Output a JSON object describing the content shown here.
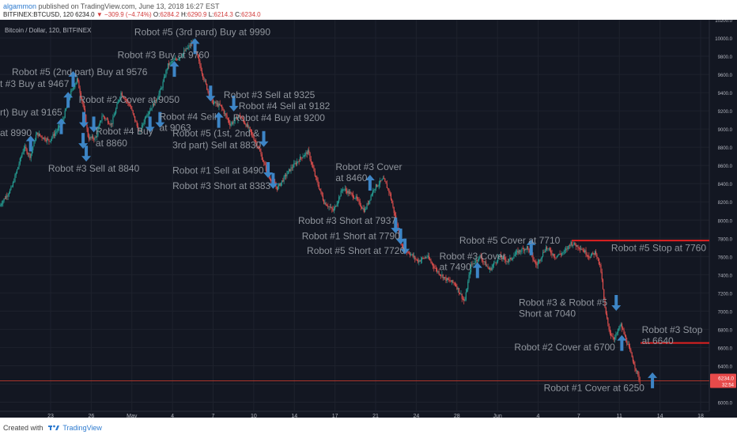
{
  "header": {
    "user": "algammon",
    "published": "published on TradingView.com, June 13, 2018 16:27 EST",
    "symbol": "BITFINEX:BTCUSD, 120",
    "last": "6234.0",
    "change": "−309.9 (−4.74%)",
    "o_label": "O:",
    "o": "6284.2",
    "h_label": "H:",
    "h": "6290.9",
    "l_label": "L:",
    "l": "6214.3",
    "c_label": "C:",
    "c": "6234.0"
  },
  "footer": {
    "created_with": "Created with",
    "brand": "TradingView"
  },
  "colors": {
    "background": "#131722",
    "grid": "#1e222d",
    "up": "#26a69a",
    "down": "#ef5350",
    "arrow": "#3d85c6",
    "label": "#8f949c",
    "stop_line": "#e02020",
    "last_price_line": "#c0392b",
    "price_badge": "#e84a4a"
  },
  "chart_data": {
    "type": "candlestick",
    "title": "Bitcoin / Dollar, 120, BITFINEX",
    "ylim": [
      5900,
      10200
    ],
    "y_ticks": [
      "10200.0",
      "10000.0",
      "9800.0",
      "9600.0",
      "9400.0",
      "9200.0",
      "9000.0",
      "8800.0",
      "8600.0",
      "8400.0",
      "8200.0",
      "8000.0",
      "7800.0",
      "7600.0",
      "7400.0",
      "7200.0",
      "7000.0",
      "6800.0",
      "6600.0",
      "6400.0",
      "6200.0",
      "6000.0"
    ],
    "x_ticks": [
      "23",
      "26",
      "May",
      "4",
      "7",
      "10",
      "14",
      "17",
      "21",
      "24",
      "28",
      "Jun",
      "4",
      "7",
      "11",
      "14",
      "18"
    ],
    "last_price": 6234.0,
    "price_badge_sub": "32:54",
    "price_path": [
      {
        "t": 0,
        "p": 8150
      },
      {
        "t": 2,
        "p": 8350
      },
      {
        "t": 4,
        "p": 8800
      },
      {
        "t": 5,
        "p": 8700
      },
      {
        "t": 6,
        "p": 8950
      },
      {
        "t": 8,
        "p": 8870
      },
      {
        "t": 10,
        "p": 9050
      },
      {
        "t": 11.5,
        "p": 9400
      },
      {
        "t": 12.5,
        "p": 9550
      },
      {
        "t": 13.5,
        "p": 9250
      },
      {
        "t": 14.3,
        "p": 8900
      },
      {
        "t": 15.5,
        "p": 8900
      },
      {
        "t": 16.5,
        "p": 9150
      },
      {
        "t": 18,
        "p": 9050
      },
      {
        "t": 19.5,
        "p": 9400
      },
      {
        "t": 21,
        "p": 9250
      },
      {
        "t": 22.5,
        "p": 8950
      },
      {
        "t": 23.5,
        "p": 9150
      },
      {
        "t": 25,
        "p": 9300
      },
      {
        "t": 26,
        "p": 9450
      },
      {
        "t": 27,
        "p": 9700
      },
      {
        "t": 29,
        "p": 9800
      },
      {
        "t": 31,
        "p": 9950
      },
      {
        "t": 31.7,
        "p": 9800
      },
      {
        "t": 32.8,
        "p": 9550
      },
      {
        "t": 34,
        "p": 9300
      },
      {
        "t": 35.5,
        "p": 9250
      },
      {
        "t": 37,
        "p": 9050
      },
      {
        "t": 38.5,
        "p": 9150
      },
      {
        "t": 40,
        "p": 9000
      },
      {
        "t": 41.5,
        "p": 8800
      },
      {
        "t": 43,
        "p": 8500
      },
      {
        "t": 44.5,
        "p": 8350
      },
      {
        "t": 46.5,
        "p": 8550
      },
      {
        "t": 48.5,
        "p": 8700
      },
      {
        "t": 49.5,
        "p": 8750
      },
      {
        "t": 50.5,
        "p": 8500
      },
      {
        "t": 52,
        "p": 8200
      },
      {
        "t": 53.5,
        "p": 8100
      },
      {
        "t": 55,
        "p": 8350
      },
      {
        "t": 57,
        "p": 8250
      },
      {
        "t": 58.5,
        "p": 8100
      },
      {
        "t": 60,
        "p": 8350
      },
      {
        "t": 61.5,
        "p": 8450
      },
      {
        "t": 62.5,
        "p": 8300
      },
      {
        "t": 63.5,
        "p": 8000
      },
      {
        "t": 64.5,
        "p": 7700
      },
      {
        "t": 65.5,
        "p": 7650
      },
      {
        "t": 67,
        "p": 7550
      },
      {
        "t": 68.5,
        "p": 7600
      },
      {
        "t": 70,
        "p": 7450
      },
      {
        "t": 71.5,
        "p": 7350
      },
      {
        "t": 73,
        "p": 7300
      },
      {
        "t": 74.5,
        "p": 7100
      },
      {
        "t": 75.5,
        "p": 7500
      },
      {
        "t": 77,
        "p": 7600
      },
      {
        "t": 78.5,
        "p": 7450
      },
      {
        "t": 80,
        "p": 7600
      },
      {
        "t": 81.5,
        "p": 7550
      },
      {
        "t": 83,
        "p": 7650
      },
      {
        "t": 84.5,
        "p": 7700
      },
      {
        "t": 86,
        "p": 7500
      },
      {
        "t": 87.5,
        "p": 7700
      },
      {
        "t": 89,
        "p": 7600
      },
      {
        "t": 90.5,
        "p": 7650
      },
      {
        "t": 91.5,
        "p": 7750
      },
      {
        "t": 93,
        "p": 7700
      },
      {
        "t": 94.5,
        "p": 7600
      },
      {
        "t": 95.5,
        "p": 7650
      },
      {
        "t": 96.3,
        "p": 7450
      },
      {
        "t": 97,
        "p": 7000
      },
      {
        "t": 97.8,
        "p": 6750
      },
      {
        "t": 98.5,
        "p": 6700
      },
      {
        "t": 99.5,
        "p": 6850
      },
      {
        "t": 100.5,
        "p": 6650
      },
      {
        "t": 101.5,
        "p": 6450
      },
      {
        "t": 102.5,
        "p": 6234
      }
    ],
    "annotations": [
      {
        "id": "ann-1",
        "text": "Robot #5 (3rd pard) Buy at 9990",
        "t": 21.5,
        "p": 10030
      },
      {
        "id": "ann-2",
        "text": "Robot #3 Buy at 9760",
        "t": 18.8,
        "p": 9780
      },
      {
        "id": "ann-3",
        "text": "Robot #5 (2nd part) Buy at 9576",
        "t": 1.9,
        "p": 9590
      },
      {
        "id": "ann-4",
        "text": "t #3 Buy at 9467",
        "t": 0,
        "p": 9460
      },
      {
        "id": "ann-5",
        "text": "Robot #2 Cover at 9050",
        "t": 12.6,
        "p": 9290
      },
      {
        "id": "ann-6",
        "text": "rt) Buy at 9165",
        "t": 0,
        "p": 9150
      },
      {
        "id": "ann-7",
        "text": "at 8990",
        "t": 0,
        "p": 8925
      },
      {
        "id": "ann-8",
        "text": "Robot #4 Buy",
        "t": 15.3,
        "p": 8940
      },
      {
        "id": "ann-9",
        "text": "at 8860",
        "t": 15.3,
        "p": 8810
      },
      {
        "id": "ann-10",
        "text": "Robot #3 Sell at 8840",
        "t": 7.7,
        "p": 8530
      },
      {
        "id": "ann-11",
        "text": "Robot #4 Sell",
        "t": 25.5,
        "p": 9100
      },
      {
        "id": "ann-12",
        "text": "at 9063",
        "t": 25.5,
        "p": 8980
      },
      {
        "id": "ann-13",
        "text": "Robot #5 (1st, 2nd &",
        "t": 27.6,
        "p": 8920
      },
      {
        "id": "ann-14",
        "text": "3rd part) Sell at 8830",
        "t": 27.6,
        "p": 8790
      },
      {
        "id": "ann-15",
        "text": "Robot #3 Sell at 9325",
        "t": 35.8,
        "p": 9340
      },
      {
        "id": "ann-16",
        "text": "Robot #4 Sell at 9182",
        "t": 38.2,
        "p": 9220
      },
      {
        "id": "ann-17",
        "text": "Robot #4 Buy at 9200",
        "t": 37.3,
        "p": 9090
      },
      {
        "id": "ann-18",
        "text": "Robot #1 Sell at 8490",
        "t": 27.6,
        "p": 8510
      },
      {
        "id": "ann-19",
        "text": "Robot #3 Short at 8383",
        "t": 27.6,
        "p": 8340
      },
      {
        "id": "ann-20",
        "text": "Robot #3 Cover",
        "t": 53.7,
        "p": 8550
      },
      {
        "id": "ann-21",
        "text": "at 8460",
        "t": 53.7,
        "p": 8430
      },
      {
        "id": "ann-22",
        "text": "Robot #3 Short at 7937",
        "t": 47.7,
        "p": 7960
      },
      {
        "id": "ann-23",
        "text": "Robot #1 Short at 7790",
        "t": 48.3,
        "p": 7790
      },
      {
        "id": "ann-24",
        "text": "Robot #5 Short at 7720",
        "t": 49.1,
        "p": 7630
      },
      {
        "id": "ann-25",
        "text": "Robot #5 Cover at 7710",
        "t": 73.5,
        "p": 7740
      },
      {
        "id": "ann-26",
        "text": "Robot #3 Cover",
        "t": 70.3,
        "p": 7570
      },
      {
        "id": "ann-27",
        "text": "at 7490",
        "t": 70.3,
        "p": 7450
      },
      {
        "id": "ann-28",
        "text": "Robot #5 Stop at 7760",
        "t": 97.8,
        "p": 7660
      },
      {
        "id": "ann-29",
        "text": "Robot #3 & Robot #5",
        "t": 83.0,
        "p": 7060
      },
      {
        "id": "ann-30",
        "text": "Short at 7040",
        "t": 83.0,
        "p": 6940
      },
      {
        "id": "ann-31",
        "text": "Robot #3 Stop",
        "t": 102.7,
        "p": 6760
      },
      {
        "id": "ann-32",
        "text": "at 6640",
        "t": 102.7,
        "p": 6640
      },
      {
        "id": "ann-33",
        "text": "Robot #2 Cover at 6700",
        "t": 82.3,
        "p": 6570
      },
      {
        "id": "ann-34",
        "text": "Robot #1 Cover at 6250",
        "t": 87.0,
        "p": 6120
      }
    ],
    "arrows": [
      {
        "id": "arr-1",
        "dir": "up",
        "t": 31.2,
        "p": 9910
      },
      {
        "id": "arr-2",
        "dir": "up",
        "t": 27.9,
        "p": 9660
      },
      {
        "id": "arr-3",
        "dir": "up",
        "t": 11.7,
        "p": 9550
      },
      {
        "id": "arr-4",
        "dir": "up",
        "t": 10.9,
        "p": 9320
      },
      {
        "id": "arr-5",
        "dir": "up",
        "t": 9.8,
        "p": 9030
      },
      {
        "id": "arr-6",
        "dir": "up",
        "t": 4.9,
        "p": 8840
      },
      {
        "id": "arr-7",
        "dir": "down",
        "t": 13.4,
        "p": 9100
      },
      {
        "id": "arr-8",
        "dir": "down",
        "t": 15.0,
        "p": 9050
      },
      {
        "id": "arr-9",
        "dir": "down",
        "t": 13.3,
        "p": 8870
      },
      {
        "id": "arr-10",
        "dir": "down",
        "t": 13.8,
        "p": 8730
      },
      {
        "id": "arr-11",
        "dir": "down",
        "t": 24.0,
        "p": 9050
      },
      {
        "id": "arr-12",
        "dir": "down",
        "t": 25.6,
        "p": 9100
      },
      {
        "id": "arr-13",
        "dir": "down",
        "t": 33.7,
        "p": 9390
      },
      {
        "id": "arr-14",
        "dir": "down",
        "t": 37.4,
        "p": 9280
      },
      {
        "id": "arr-15",
        "dir": "up",
        "t": 35.0,
        "p": 9100
      },
      {
        "id": "arr-16",
        "dir": "down",
        "t": 42.2,
        "p": 8890
      },
      {
        "id": "arr-17",
        "dir": "down",
        "t": 42.9,
        "p": 8550
      },
      {
        "id": "arr-18",
        "dir": "down",
        "t": 43.7,
        "p": 8430
      },
      {
        "id": "arr-19",
        "dir": "up",
        "t": 59.2,
        "p": 8410
      },
      {
        "id": "arr-20",
        "dir": "down",
        "t": 63.3,
        "p": 7940
      },
      {
        "id": "arr-21",
        "dir": "down",
        "t": 64.1,
        "p": 7820
      },
      {
        "id": "arr-22",
        "dir": "down",
        "t": 64.8,
        "p": 7710
      },
      {
        "id": "arr-23",
        "dir": "up",
        "t": 76.4,
        "p": 7450
      },
      {
        "id": "arr-24",
        "dir": "up",
        "t": 85.0,
        "p": 7700
      },
      {
        "id": "arr-25",
        "dir": "down",
        "t": 98.6,
        "p": 7090
      },
      {
        "id": "arr-26",
        "dir": "up",
        "t": 99.5,
        "p": 6650
      },
      {
        "id": "arr-27",
        "dir": "up",
        "t": 104.4,
        "p": 6240
      }
    ],
    "stop_lines": [
      {
        "id": "stop-5",
        "price": 7775,
        "t_start": 91.5,
        "t_end": 113.5
      },
      {
        "id": "stop-3",
        "price": 6650,
        "t_start": 102.5,
        "t_end": 113.5
      }
    ]
  }
}
